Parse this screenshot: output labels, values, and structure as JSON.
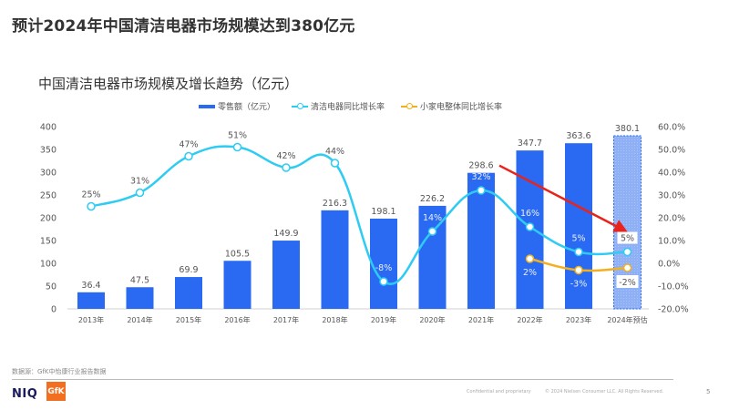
{
  "page": {
    "title": "预计2024年中国清洁电器市场规模达到380亿元",
    "source": "数据源：GfK中怡康行业报告数据",
    "footer_confidential": "Confidential and proprietary",
    "footer_copyright": "© 2024 Nielsen Consumer LLC. All Rights Reserved.",
    "page_number": "5",
    "logo_niq": "NIQ",
    "logo_gfk": "GfK"
  },
  "colors": {
    "bar": "#2a6af2",
    "bar_forecast": "#8fb0f5",
    "line_cleaning": "#2ecbf2",
    "line_small_appliance": "#f2b01e",
    "arrow": "#e8231c"
  },
  "chart_data": {
    "type": "bar",
    "title": "中国清洁电器市场规模及增长趋势（亿元）",
    "categories": [
      "2013年",
      "2014年",
      "2015年",
      "2016年",
      "2017年",
      "2018年",
      "2019年",
      "2020年",
      "2021年",
      "2022年",
      "2023年",
      "2024年预估"
    ],
    "legend": [
      "零售额（亿元）",
      "清洁电器同比增长率",
      "小家电整体同比增长率"
    ],
    "legend_position": "top",
    "series": [
      {
        "name": "零售额（亿元）",
        "type": "bar",
        "axis": "left",
        "values": [
          36.4,
          47.5,
          69.9,
          105.5,
          149.9,
          216.3,
          198.1,
          226.2,
          298.6,
          347.7,
          363.6,
          380.1
        ],
        "labels": [
          "36.4",
          "47.5",
          "69.9",
          "105.5",
          "149.9",
          "216.3",
          "198.1",
          "226.2",
          "298.6",
          "347.7",
          "363.6",
          "380.1"
        ],
        "forecast_index": 11
      },
      {
        "name": "清洁电器同比增长率",
        "type": "line",
        "axis": "right",
        "values": [
          25,
          31,
          47,
          51,
          42,
          44,
          -8,
          14,
          32,
          16,
          5,
          5
        ],
        "labels": [
          "25%",
          "31%",
          "47%",
          "51%",
          "42%",
          "44%",
          "-8%",
          "14%",
          "32%",
          "16%",
          "5%",
          "5%"
        ]
      },
      {
        "name": "小家电整体同比增长率",
        "type": "line",
        "axis": "right",
        "start_index": 9,
        "values": [
          2,
          -3,
          -2
        ],
        "labels": [
          "2%",
          "-3%",
          "-2%"
        ]
      }
    ],
    "left_axis": {
      "range": [
        0,
        400
      ],
      "ticks": [
        "0",
        "50",
        "100",
        "150",
        "200",
        "250",
        "300",
        "350",
        "400"
      ]
    },
    "right_axis": {
      "range": [
        -20,
        60
      ],
      "ticks": [
        "-20.0%",
        "-10.0%",
        "0.0%",
        "10.0%",
        "20.0%",
        "30.0%",
        "40.0%",
        "50.0%",
        "60.0%"
      ]
    },
    "annotation": "red arrow from 2021 bar label (298.6) pointing down to 2024 forecast 5%",
    "grid": false
  }
}
